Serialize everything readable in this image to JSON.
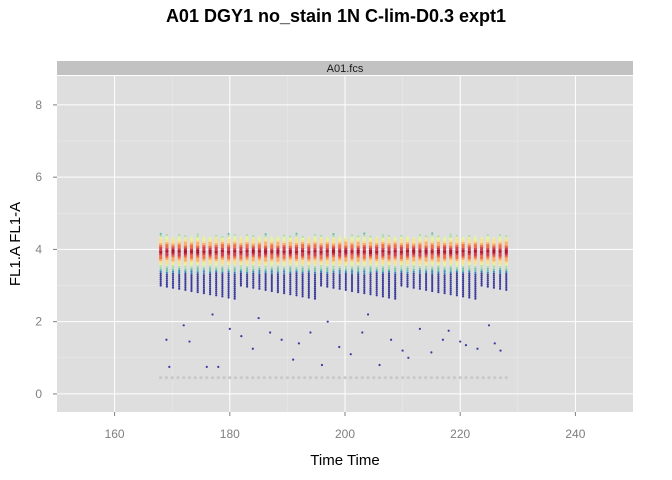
{
  "chart_data": {
    "type": "scatter",
    "title": "A01 DGY1 no_stain 1N C-lim-D0.3 expt1",
    "panel_strip": "A01.fcs",
    "xlabel": "Time Time",
    "ylabel": "FL1.A FL1-A",
    "xlim": [
      150,
      250
    ],
    "ylim": [
      -0.5,
      8.8
    ],
    "x_ticks": [
      160,
      180,
      200,
      220,
      240
    ],
    "y_ticks": [
      0,
      2,
      4,
      6,
      8
    ],
    "grid": true,
    "density_coloring": "spectral (blue low density to red high density)",
    "columns_x_range": [
      168,
      228
    ],
    "column_count": 57,
    "dense_band": {
      "center": 3.95,
      "min": 3.0,
      "max": 4.45
    },
    "sparse_points": [
      {
        "x": 169,
        "y": 1.5
      },
      {
        "x": 169.5,
        "y": 0.75
      },
      {
        "x": 172,
        "y": 1.9
      },
      {
        "x": 173,
        "y": 1.45
      },
      {
        "x": 176,
        "y": 0.75
      },
      {
        "x": 177,
        "y": 2.2
      },
      {
        "x": 178,
        "y": 0.75
      },
      {
        "x": 180,
        "y": 1.8
      },
      {
        "x": 182,
        "y": 1.6
      },
      {
        "x": 184,
        "y": 1.25
      },
      {
        "x": 185,
        "y": 2.1
      },
      {
        "x": 187,
        "y": 1.7
      },
      {
        "x": 189,
        "y": 1.5
      },
      {
        "x": 191,
        "y": 0.95
      },
      {
        "x": 192,
        "y": 1.4
      },
      {
        "x": 194,
        "y": 1.7
      },
      {
        "x": 196,
        "y": 0.8
      },
      {
        "x": 197,
        "y": 2.0
      },
      {
        "x": 199,
        "y": 1.3
      },
      {
        "x": 201,
        "y": 1.1
      },
      {
        "x": 203,
        "y": 1.7
      },
      {
        "x": 204,
        "y": 2.2
      },
      {
        "x": 206,
        "y": 0.8
      },
      {
        "x": 208,
        "y": 1.5
      },
      {
        "x": 210,
        "y": 1.2
      },
      {
        "x": 211,
        "y": 1.0
      },
      {
        "x": 213,
        "y": 1.8
      },
      {
        "x": 215,
        "y": 1.15
      },
      {
        "x": 217,
        "y": 1.5
      },
      {
        "x": 218,
        "y": 1.75
      },
      {
        "x": 220,
        "y": 1.45
      },
      {
        "x": 221,
        "y": 1.35
      },
      {
        "x": 223,
        "y": 1.25
      },
      {
        "x": 225,
        "y": 1.9
      },
      {
        "x": 226,
        "y": 1.4
      },
      {
        "x": 227,
        "y": 1.2
      }
    ],
    "baseline_points": {
      "y": 0.45,
      "x_range": [
        168,
        228
      ],
      "color": "#c9c9c9"
    },
    "colors": {
      "panel_background": "#dedede",
      "strip_background": "#c2c2c2",
      "gridline": "#ffffff",
      "low_density": "#3b3b9e",
      "high_density": "#b2172b"
    }
  }
}
